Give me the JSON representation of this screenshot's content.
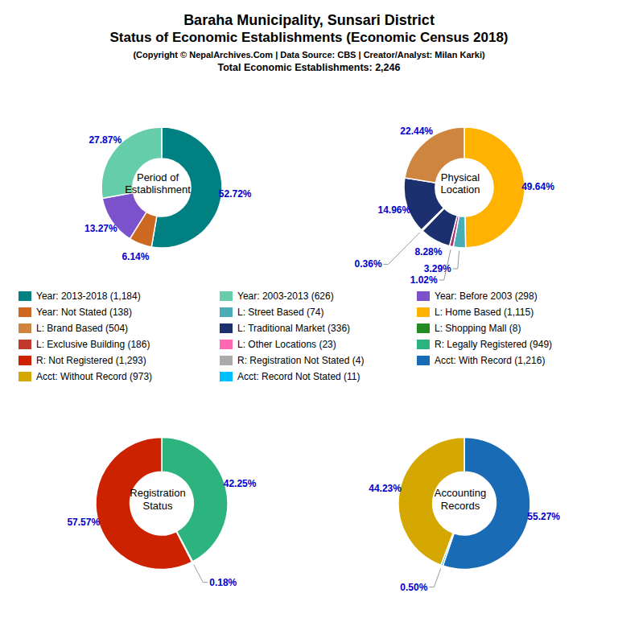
{
  "title": "Baraha Municipality, Sunsari District\nStatus of Economic Establishments (Economic Census 2018)",
  "subtitle": "(Copyright © NepalArchives.Com | Data Source: CBS | Creator/Analyst: Milan Karki)",
  "annotations": [
    "Total Economic Establishments: 2,246"
  ],
  "series": [
    {
      "name": "Year: 2013-2018 (1,184)",
      "color": "#008080"
    },
    {
      "name": "Year: Not Stated (138)",
      "color": "#CD6820"
    },
    {
      "name": "L: Brand Based (504)",
      "color": "#CD853F"
    },
    {
      "name": "L: Exclusive Building (186)",
      "color": "#C0392B"
    },
    {
      "name": "R: Not Registered (1,293)",
      "color": "#CC2200"
    },
    {
      "name": "Acct: Without Record (973)",
      "color": "#D4A800"
    },
    {
      "name": "Year: 2003-2013 (626)",
      "color": "#66CDAA"
    },
    {
      "name": "L: Street Based (74)",
      "color": "#4BADB5"
    },
    {
      "name": "L: Traditional Market (336)",
      "color": "#1C2F6E"
    },
    {
      "name": "L: Other Locations (23)",
      "color": "#FF69B4"
    },
    {
      "name": "R: Registration Not Stated (4)",
      "color": "#AAAAAA"
    },
    {
      "name": "Acct: Record Not Stated (11)",
      "color": "#00BFFF"
    },
    {
      "name": "Year: Before 2003 (298)",
      "color": "#7B52CC"
    },
    {
      "name": "L: Home Based (1,115)",
      "color": "#FFB300"
    },
    {
      "name": "L: Shopping Mall (8)",
      "color": "#228B22"
    },
    {
      "name": "R: Legally Registered (949)",
      "color": "#2DB37D"
    },
    {
      "name": "Acct: With Record (1,216)",
      "color": "#1A6BB5"
    }
  ],
  "chart_data": [
    {
      "type": "pie",
      "title": "Period of\nEstablishment",
      "values": [
        52.72,
        6.14,
        13.27,
        27.87
      ],
      "value_labels": [
        "52.72%",
        "6.14%",
        "13.27%",
        "27.87%"
      ],
      "colors": [
        "#008080",
        "#CD6820",
        "#7B52CC",
        "#66CDAA"
      ],
      "data_labels": true
    },
    {
      "type": "pie",
      "title": "Physical\nLocation",
      "values": [
        49.64,
        3.29,
        1.02,
        8.28,
        0.36,
        14.96,
        22.44
      ],
      "value_labels": [
        "49.64%",
        "3.29%",
        "1.02%",
        "8.28%",
        "0.36%",
        "14.96%",
        "22.44%"
      ],
      "colors": [
        "#FFB300",
        "#4BADB5",
        "#B03070",
        "#1C2F6E",
        "#228B22",
        "#1C2F6E",
        "#CD853F"
      ],
      "data_labels": true
    },
    {
      "type": "pie",
      "title": "Registration\nStatus",
      "values": [
        42.25,
        0.18,
        57.57
      ],
      "value_labels": [
        "42.25%",
        "0.18%",
        "57.57%"
      ],
      "colors": [
        "#2DB37D",
        "#AAAAAA",
        "#CC2200"
      ],
      "data_labels": true
    },
    {
      "type": "pie",
      "title": "Accounting\nRecords",
      "values": [
        55.27,
        0.5,
        44.23
      ],
      "value_labels": [
        "55.27%",
        "0.50%",
        "44.23%"
      ],
      "colors": [
        "#1A6BB5",
        "#00BFFF",
        "#D4A800"
      ],
      "data_labels": true
    }
  ]
}
